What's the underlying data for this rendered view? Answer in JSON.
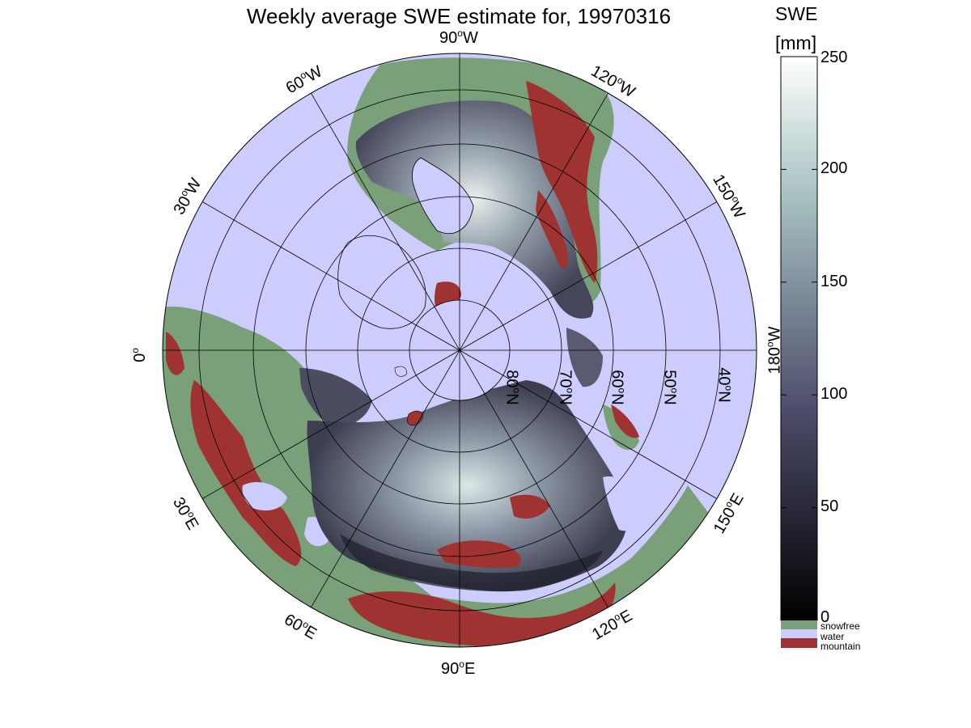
{
  "figure": {
    "title": "Weekly average SWE estimate for, 19970316"
  },
  "map": {
    "projection": "north polar stereographic",
    "center": "North Pole",
    "outer_latitude": "~35N",
    "longitude_labels": [
      {
        "key": "lon_90w",
        "num": "90",
        "unit": "o",
        "dir": "W"
      },
      {
        "key": "lon_60w",
        "num": "60",
        "unit": "o",
        "dir": "W"
      },
      {
        "key": "lon_30w",
        "num": "30",
        "unit": "o",
        "dir": "W"
      },
      {
        "key": "lon_0",
        "num": "0",
        "unit": "o",
        "dir": ""
      },
      {
        "key": "lon_120w",
        "num": "120",
        "unit": "o",
        "dir": "W"
      },
      {
        "key": "lon_150w",
        "num": "150",
        "unit": "o",
        "dir": "W"
      },
      {
        "key": "lon_180w",
        "num": "180",
        "unit": "o",
        "dir": "W"
      },
      {
        "key": "lon_30e",
        "num": "30",
        "unit": "o",
        "dir": "E"
      },
      {
        "key": "lon_60e",
        "num": "60",
        "unit": "o",
        "dir": "E"
      },
      {
        "key": "lon_90e",
        "num": "90",
        "unit": "o",
        "dir": "E"
      },
      {
        "key": "lon_120e",
        "num": "120",
        "unit": "o",
        "dir": "E"
      },
      {
        "key": "lon_150e",
        "num": "150",
        "unit": "o",
        "dir": "E"
      }
    ],
    "latitude_labels": [
      {
        "key": "lat_80n",
        "num": "80",
        "unit": "o",
        "dir": "N"
      },
      {
        "key": "lat_70n",
        "num": "70",
        "unit": "o",
        "dir": "N"
      },
      {
        "key": "lat_60n",
        "num": "60",
        "unit": "o",
        "dir": "N"
      },
      {
        "key": "lat_50n",
        "num": "50",
        "unit": "o",
        "dir": "N"
      },
      {
        "key": "lat_40n",
        "num": "40",
        "unit": "o",
        "dir": "N"
      }
    ],
    "colors": {
      "water": "#cccdfc",
      "snowfree": "#79a079",
      "mountain": "#9e3331",
      "grid": "#000000",
      "coast": "#000000"
    }
  },
  "colorbar": {
    "label_line1": "SWE",
    "label_line2": "[mm]",
    "range": [
      0,
      250
    ],
    "ticks": [
      "0",
      "50",
      "100",
      "150",
      "200",
      "250"
    ],
    "colormap": "bone (black to white)",
    "legend": [
      {
        "label": "snowfree",
        "color": "#79a079"
      },
      {
        "label": "water",
        "color": "#cccdfc"
      },
      {
        "label": "mountain",
        "color": "#9e3331"
      }
    ]
  }
}
